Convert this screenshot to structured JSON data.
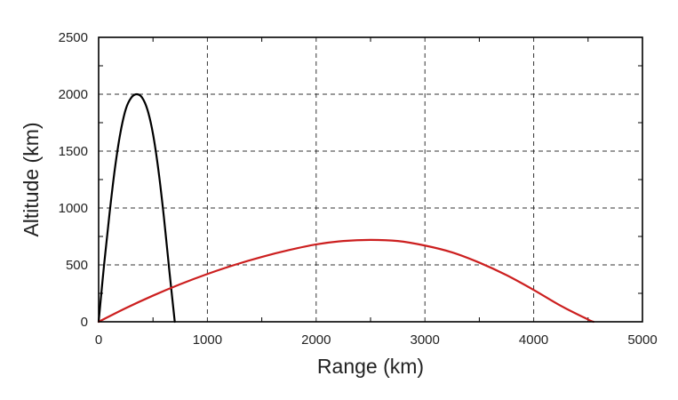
{
  "chart_data": {
    "type": "line",
    "title": "",
    "xlabel": "Range (km)",
    "ylabel": "Altitude (km)",
    "xlim": [
      0,
      5000
    ],
    "ylim": [
      0,
      2500
    ],
    "xticks": [
      0,
      1000,
      2000,
      3000,
      4000,
      5000
    ],
    "yticks": [
      0,
      500,
      1000,
      1500,
      2000,
      2500
    ],
    "grid": true,
    "grid_style": "dashed",
    "legend": "none",
    "series": [
      {
        "color": "#000000",
        "points": [
          [
            0,
            0
          ],
          [
            50,
            500
          ],
          [
            100,
            950
          ],
          [
            150,
            1350
          ],
          [
            200,
            1660
          ],
          [
            250,
            1870
          ],
          [
            300,
            1970
          ],
          [
            350,
            2000
          ],
          [
            400,
            1970
          ],
          [
            450,
            1860
          ],
          [
            500,
            1650
          ],
          [
            550,
            1330
          ],
          [
            600,
            920
          ],
          [
            650,
            450
          ],
          [
            700,
            0
          ]
        ]
      },
      {
        "color": "#cc1f1f",
        "points": [
          [
            0,
            0
          ],
          [
            250,
            120
          ],
          [
            500,
            230
          ],
          [
            750,
            330
          ],
          [
            1000,
            420
          ],
          [
            1250,
            500
          ],
          [
            1500,
            570
          ],
          [
            1750,
            630
          ],
          [
            2000,
            680
          ],
          [
            2250,
            710
          ],
          [
            2500,
            720
          ],
          [
            2750,
            710
          ],
          [
            3000,
            670
          ],
          [
            3250,
            610
          ],
          [
            3500,
            520
          ],
          [
            3750,
            410
          ],
          [
            4000,
            280
          ],
          [
            4250,
            140
          ],
          [
            4500,
            20
          ],
          [
            4550,
            0
          ]
        ]
      }
    ]
  }
}
